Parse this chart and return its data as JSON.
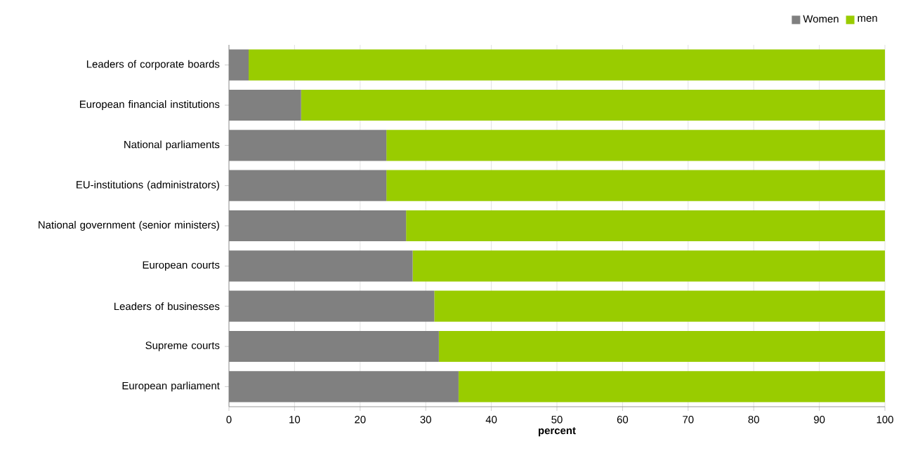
{
  "chart_data": {
    "type": "bar",
    "orientation": "horizontal",
    "stacked": true,
    "xlabel": "percent",
    "categories": [
      "Leaders of corporate boards",
      "European financial institutions",
      "National parliaments",
      "EU-institutions (administrators)",
      "National government (senior ministers)",
      "European courts",
      "Leaders of businesses",
      "Supreme courts",
      "European parliament"
    ],
    "series": [
      {
        "name": "Women",
        "color": "#808080",
        "values": [
          3,
          11,
          24,
          24,
          27,
          28,
          31.3,
          32,
          35
        ]
      },
      {
        "name": "men",
        "color": "#99cc00",
        "values": [
          97,
          89,
          76,
          76,
          73,
          72,
          68.7,
          68,
          65
        ]
      }
    ],
    "xlim": [
      0,
      100
    ],
    "xticks": [
      0,
      10,
      20,
      30,
      40,
      50,
      60,
      70,
      80,
      90,
      100
    ],
    "grid": "x",
    "legend": "top right"
  }
}
